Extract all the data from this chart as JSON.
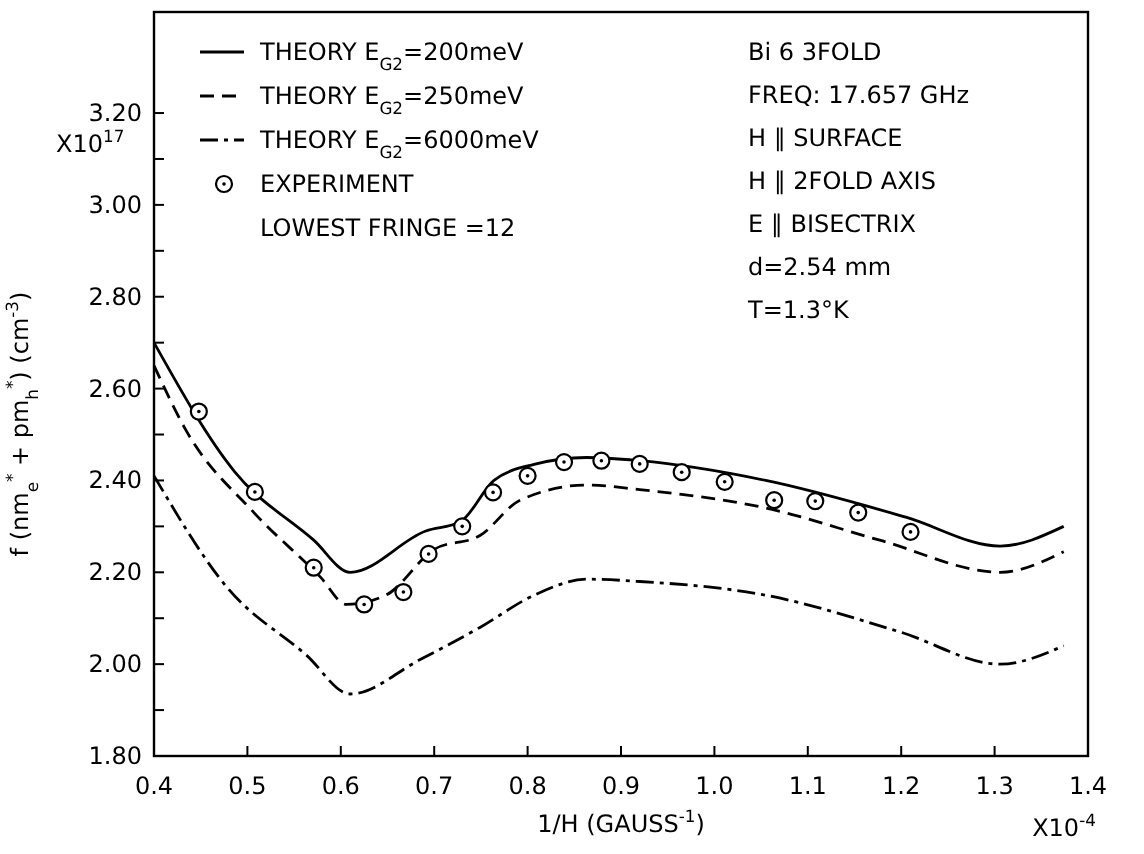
{
  "chart_data": {
    "type": "line",
    "xlabel": "1/H (GAUSS$^{-1}$)",
    "ylabel": "f (nm$_{e}$$^{*}$ + pm$_{h}$$^{*}$) (cm$^{-3}$)",
    "xlim": [
      0.4,
      1.4
    ],
    "xticks": [
      0.4,
      0.5,
      0.6,
      0.7,
      0.8,
      0.9,
      {
        "value": 1,
        "label": "1.0"
      },
      1.1,
      1.2,
      1.3,
      1.4
    ],
    "ylim": [
      1.8,
      3.42
    ],
    "yticks": [
      {
        "value": 1.8,
        "label": "1.80"
      },
      {
        "value": 1.9,
        "label": null
      },
      {
        "value": 2,
        "label": "2.00"
      },
      {
        "value": 2.1,
        "label": null
      },
      {
        "value": 2.2,
        "label": "2.20"
      },
      {
        "value": 2.3,
        "label": null
      },
      {
        "value": 2.4,
        "label": "2.40"
      },
      {
        "value": 2.5,
        "label": null
      },
      {
        "value": 2.6,
        "label": "2.60"
      },
      {
        "value": 2.7,
        "label": null
      },
      {
        "value": 2.8,
        "label": "2.80"
      },
      {
        "value": 2.9,
        "label": null
      },
      {
        "value": 3,
        "label": "3.00"
      },
      {
        "value": 3.1,
        "label": null
      },
      {
        "value": 3.2,
        "label": "3.20"
      }
    ],
    "grid": false,
    "legend": "top left",
    "series": [
      {
        "name": "THEORY E$_{G2}$=200meV",
        "color": "#000000",
        "line_style": "solid",
        "x": [
          0.4,
          0.486,
          0.571,
          0.61,
          0.691,
          0.728,
          0.764,
          0.807,
          0.863,
          0.92,
          1.055,
          1.205,
          1.306,
          1.374
        ],
        "values": [
          2.7,
          2.42,
          2.27,
          2.2,
          2.29,
          2.31,
          2.4,
          2.435,
          2.45,
          2.443,
          2.4,
          2.32,
          2.257,
          2.3
        ]
      },
      {
        "name": "THEORY E$_{G2}$=250meV",
        "color": "#000000",
        "line_style": "dashed",
        "x": [
          0.4,
          0.434,
          0.507,
          0.578,
          0.606,
          0.648,
          0.7,
          0.749,
          0.792,
          0.863,
          0.92,
          1.055,
          1.177,
          1.306,
          1.374
        ],
        "values": [
          2.65,
          2.51,
          2.33,
          2.19,
          2.13,
          2.15,
          2.25,
          2.28,
          2.357,
          2.39,
          2.38,
          2.34,
          2.27,
          2.2,
          2.245
        ]
      },
      {
        "name": "THEORY E$_{G2}$=6000meV",
        "color": "#000000",
        "line_style": "dashdot",
        "x": [
          0.4,
          0.477,
          0.563,
          0.61,
          0.685,
          0.749,
          0.807,
          0.863,
          0.92,
          1.055,
          1.199,
          1.306,
          1.374
        ],
        "values": [
          2.41,
          2.17,
          2.02,
          1.935,
          2.01,
          2.08,
          2.15,
          2.185,
          2.18,
          2.15,
          2.07,
          2.0,
          2.04
        ]
      },
      {
        "name": "EXPERIMENT",
        "type": "scatter",
        "color": "#000000",
        "marker": "circle",
        "x": [
          0.448,
          0.508,
          0.571,
          0.625,
          0.667,
          0.694,
          0.73,
          0.763,
          0.8,
          0.839,
          0.879,
          0.92,
          0.965,
          1.011,
          1.064,
          1.108,
          1.154,
          1.21
        ],
        "values": [
          2.55,
          2.375,
          2.21,
          2.13,
          2.157,
          2.24,
          2.3,
          2.374,
          2.41,
          2.44,
          2.443,
          2.436,
          2.418,
          2.397,
          2.357,
          2.355,
          2.33,
          2.288
        ]
      }
    ],
    "annotations": [
      "LOWEST FRINGE =12",
      "Bi 6  3FOLD",
      "FREQ: 17.657 GHz",
      "H ∥ SURFACE",
      "H ∥ 2FOLD AXIS",
      "E ∥ BISECTRIX",
      "d=2.54 mm",
      "T=1.3°K",
      "X10$^{17}$",
      "X10$^{-4}$"
    ]
  }
}
